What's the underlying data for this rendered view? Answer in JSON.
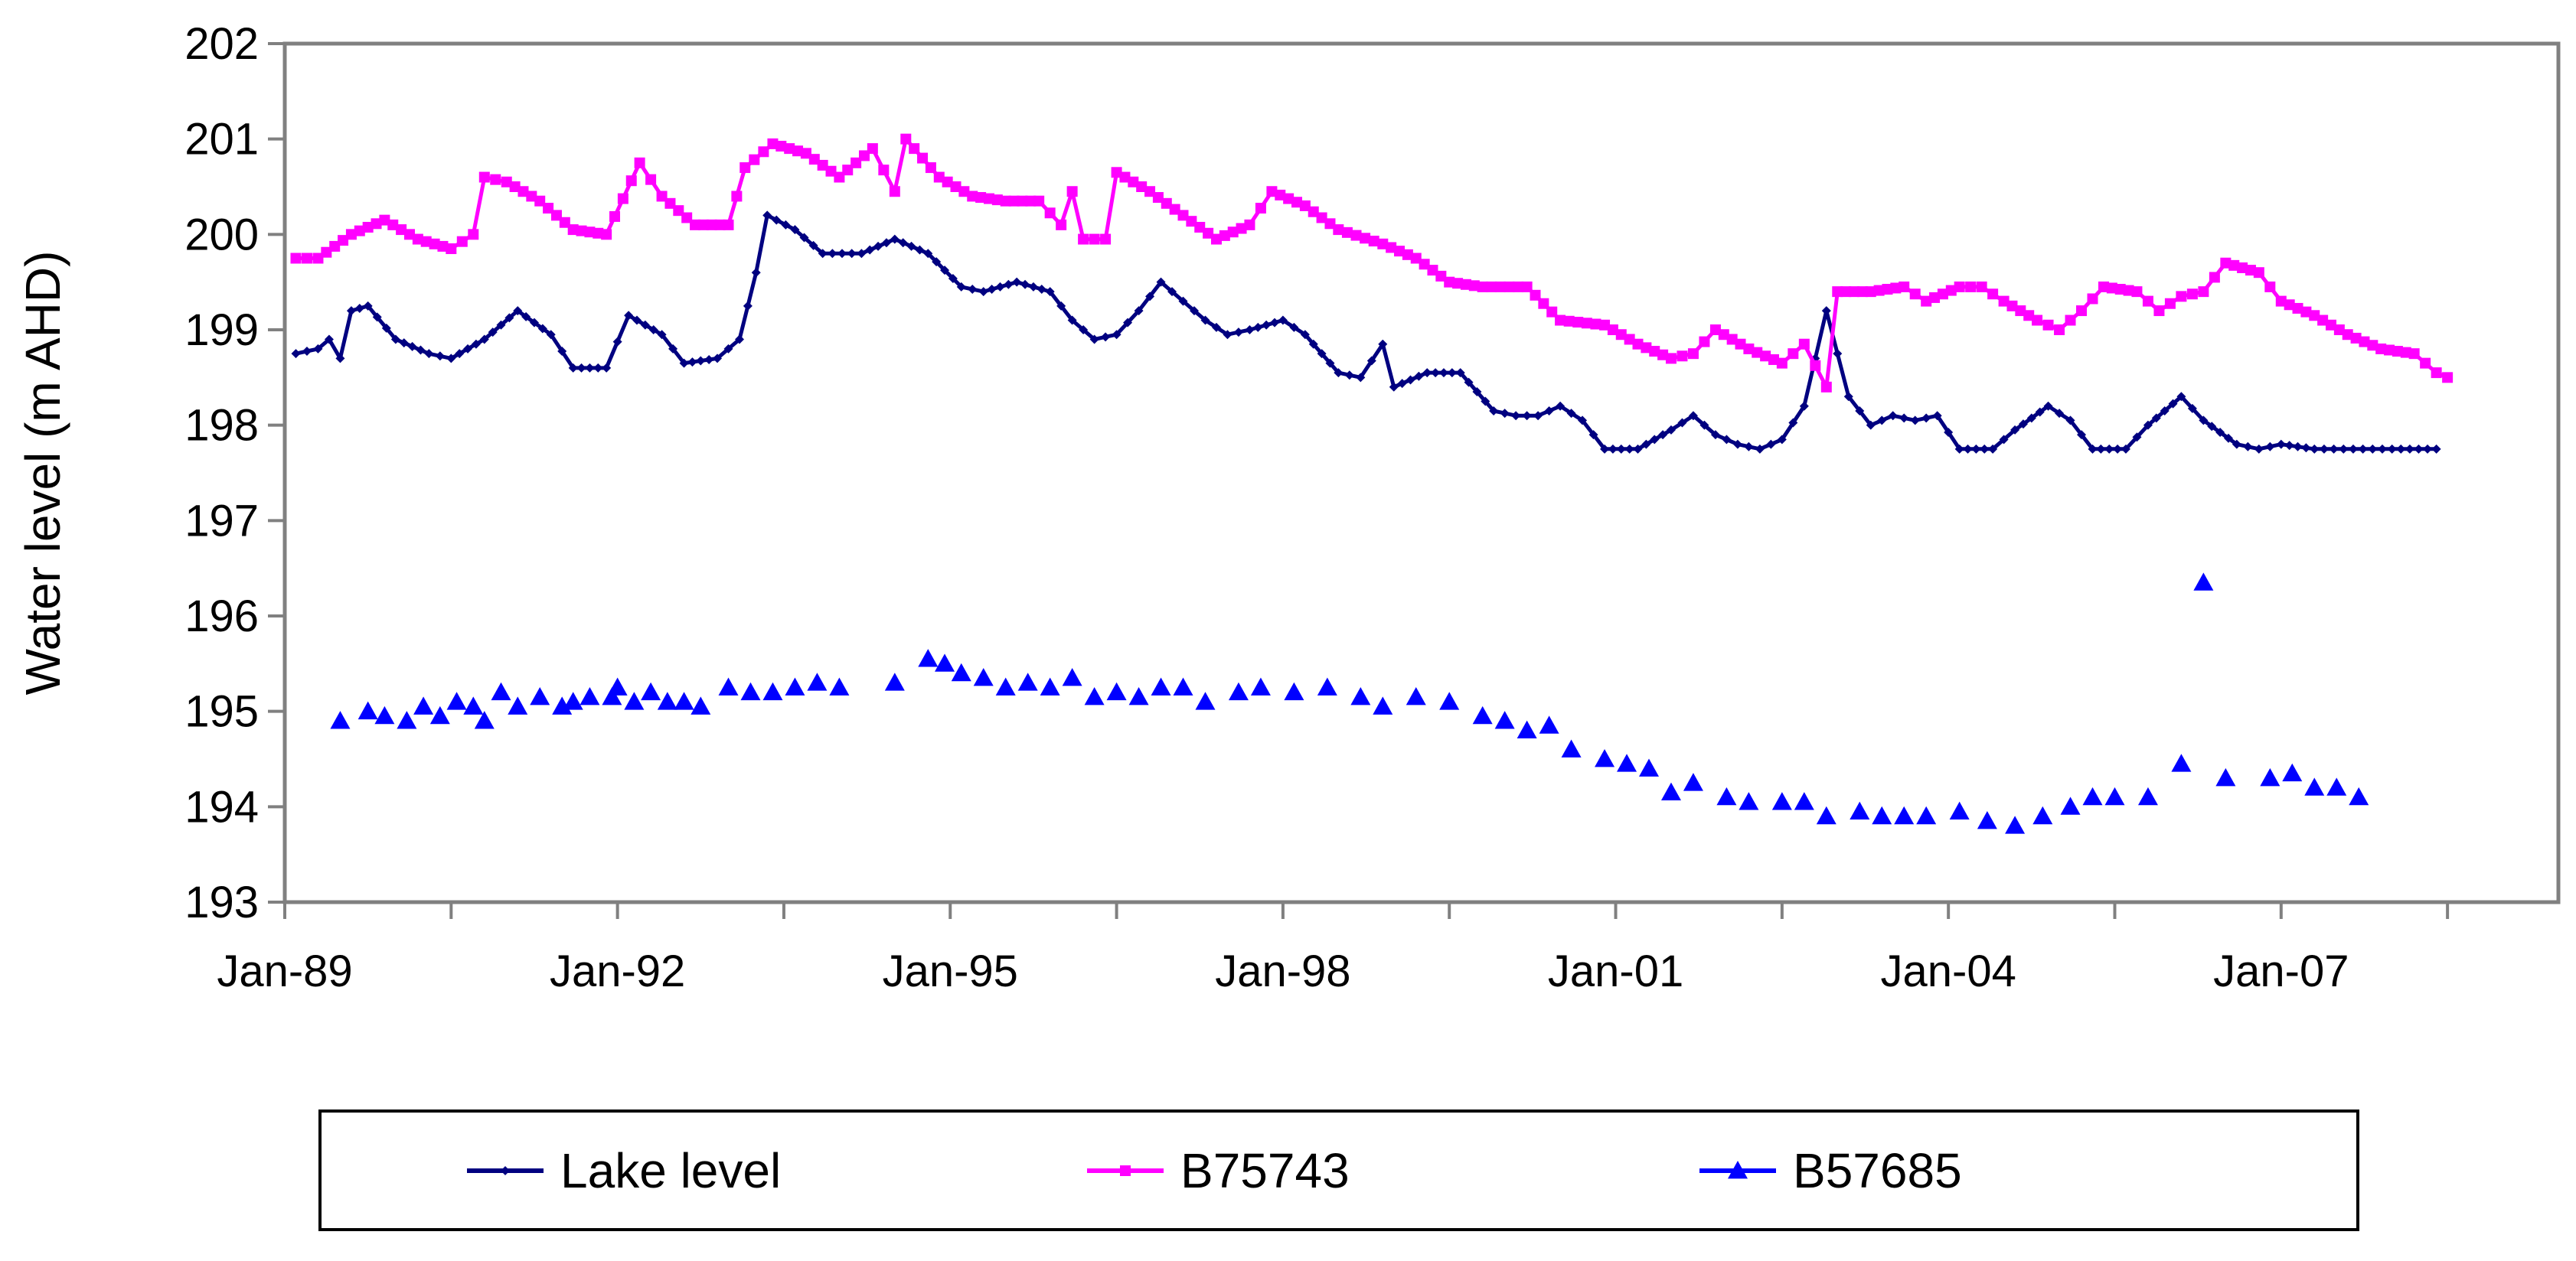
{
  "chart_data": {
    "type": "line",
    "title": "",
    "xlabel": "",
    "ylabel": "Water level (m AHD)",
    "xlim": [
      1989.0,
      2009.5
    ],
    "ylim": [
      193,
      202
    ],
    "y_ticks": [
      193,
      194,
      195,
      196,
      197,
      198,
      199,
      200,
      201,
      202
    ],
    "x_ticks": [
      {
        "label": "Jan-89",
        "x": 1989.0
      },
      {
        "label": "Jan-92",
        "x": 1992.0
      },
      {
        "label": "Jan-95",
        "x": 1995.0
      },
      {
        "label": "Jan-98",
        "x": 1998.0
      },
      {
        "label": "Jan-01",
        "x": 2001.0
      },
      {
        "label": "Jan-04",
        "x": 2004.0
      },
      {
        "label": "Jan-07",
        "x": 2007.0
      }
    ],
    "grid": false,
    "legend_position": "bottom",
    "series": [
      {
        "name": "Lake level",
        "color": "#000080",
        "marker": "diamond",
        "connected": true,
        "anchors": [
          [
            1989.1,
            198.75
          ],
          [
            1989.3,
            198.8
          ],
          [
            1989.4,
            198.9
          ],
          [
            1989.5,
            198.7
          ],
          [
            1989.6,
            199.2
          ],
          [
            1989.75,
            199.25
          ],
          [
            1990.0,
            198.9
          ],
          [
            1990.3,
            198.75
          ],
          [
            1990.5,
            198.7
          ],
          [
            1990.8,
            198.9
          ],
          [
            1991.1,
            199.2
          ],
          [
            1991.4,
            198.95
          ],
          [
            1991.6,
            198.6
          ],
          [
            1991.9,
            198.6
          ],
          [
            1992.1,
            199.15
          ],
          [
            1992.4,
            198.95
          ],
          [
            1992.6,
            198.65
          ],
          [
            1992.9,
            198.7
          ],
          [
            1993.1,
            198.9
          ],
          [
            1993.25,
            199.6
          ],
          [
            1993.35,
            200.2
          ],
          [
            1993.6,
            200.05
          ],
          [
            1993.85,
            199.8
          ],
          [
            1994.2,
            199.8
          ],
          [
            1994.5,
            199.95
          ],
          [
            1994.8,
            199.8
          ],
          [
            1995.1,
            199.45
          ],
          [
            1995.3,
            199.4
          ],
          [
            1995.6,
            199.5
          ],
          [
            1995.9,
            199.4
          ],
          [
            1996.1,
            199.1
          ],
          [
            1996.3,
            198.9
          ],
          [
            1996.5,
            198.95
          ],
          [
            1996.7,
            199.2
          ],
          [
            1996.9,
            199.5
          ],
          [
            1997.1,
            199.3
          ],
          [
            1997.3,
            199.1
          ],
          [
            1997.5,
            198.95
          ],
          [
            1997.7,
            199.0
          ],
          [
            1998.0,
            199.1
          ],
          [
            1998.2,
            198.95
          ],
          [
            1998.5,
            198.55
          ],
          [
            1998.7,
            198.5
          ],
          [
            1998.9,
            198.85
          ],
          [
            1999.0,
            198.4
          ],
          [
            1999.3,
            198.55
          ],
          [
            1999.6,
            198.55
          ],
          [
            1999.9,
            198.15
          ],
          [
            2000.1,
            198.1
          ],
          [
            2000.3,
            198.1
          ],
          [
            2000.5,
            198.2
          ],
          [
            2000.7,
            198.05
          ],
          [
            2000.9,
            197.75
          ],
          [
            2001.2,
            197.75
          ],
          [
            2001.5,
            197.95
          ],
          [
            2001.7,
            198.1
          ],
          [
            2001.9,
            197.9
          ],
          [
            2002.1,
            197.8
          ],
          [
            2002.3,
            197.75
          ],
          [
            2002.5,
            197.85
          ],
          [
            2002.7,
            198.2
          ],
          [
            2002.9,
            199.2
          ],
          [
            2003.1,
            198.3
          ],
          [
            2003.3,
            198.0
          ],
          [
            2003.5,
            198.1
          ],
          [
            2003.7,
            198.05
          ],
          [
            2003.9,
            198.1
          ],
          [
            2004.1,
            197.75
          ],
          [
            2004.4,
            197.75
          ],
          [
            2004.6,
            197.95
          ],
          [
            2004.9,
            198.2
          ],
          [
            2005.1,
            198.05
          ],
          [
            2005.3,
            197.75
          ],
          [
            2005.6,
            197.75
          ],
          [
            2005.8,
            198.0
          ],
          [
            2006.1,
            198.3
          ],
          [
            2006.3,
            198.05
          ],
          [
            2006.6,
            197.8
          ],
          [
            2006.8,
            197.75
          ],
          [
            2007.0,
            197.8
          ],
          [
            2007.3,
            197.75
          ],
          [
            2008.0,
            197.75
          ],
          [
            2008.4,
            197.75
          ]
        ]
      },
      {
        "name": "B75743",
        "color": "#ff00ff",
        "marker": "square",
        "connected": true,
        "anchors": [
          [
            1989.1,
            199.75
          ],
          [
            1989.3,
            199.75
          ],
          [
            1989.6,
            200.0
          ],
          [
            1989.9,
            200.15
          ],
          [
            1990.2,
            199.95
          ],
          [
            1990.5,
            199.85
          ],
          [
            1990.7,
            200.0
          ],
          [
            1990.8,
            200.6
          ],
          [
            1991.0,
            200.55
          ],
          [
            1991.3,
            200.35
          ],
          [
            1991.6,
            200.05
          ],
          [
            1991.9,
            200.0
          ],
          [
            1992.2,
            200.75
          ],
          [
            1992.4,
            200.4
          ],
          [
            1992.7,
            200.1
          ],
          [
            1993.0,
            200.1
          ],
          [
            1993.15,
            200.7
          ],
          [
            1993.4,
            200.95
          ],
          [
            1993.7,
            200.85
          ],
          [
            1994.0,
            200.6
          ],
          [
            1994.3,
            200.9
          ],
          [
            1994.5,
            200.45
          ],
          [
            1994.6,
            201.0
          ],
          [
            1994.9,
            200.6
          ],
          [
            1995.2,
            200.4
          ],
          [
            1995.5,
            200.35
          ],
          [
            1995.8,
            200.35
          ],
          [
            1996.0,
            200.1
          ],
          [
            1996.1,
            200.45
          ],
          [
            1996.2,
            199.95
          ],
          [
            1996.4,
            199.95
          ],
          [
            1996.5,
            200.65
          ],
          [
            1996.8,
            200.45
          ],
          [
            1997.1,
            200.2
          ],
          [
            1997.4,
            199.95
          ],
          [
            1997.7,
            200.1
          ],
          [
            1997.9,
            200.45
          ],
          [
            1998.2,
            200.3
          ],
          [
            1998.5,
            200.05
          ],
          [
            1998.9,
            199.9
          ],
          [
            1999.2,
            199.75
          ],
          [
            1999.5,
            199.5
          ],
          [
            1999.8,
            199.45
          ],
          [
            2000.2,
            199.45
          ],
          [
            2000.5,
            199.1
          ],
          [
            2000.9,
            199.05
          ],
          [
            2001.2,
            198.85
          ],
          [
            2001.5,
            198.7
          ],
          [
            2001.7,
            198.75
          ],
          [
            2001.9,
            199.0
          ],
          [
            2002.2,
            198.8
          ],
          [
            2002.5,
            198.65
          ],
          [
            2002.7,
            198.85
          ],
          [
            2002.9,
            198.4
          ],
          [
            2003.0,
            199.4
          ],
          [
            2003.3,
            199.4
          ],
          [
            2003.6,
            199.45
          ],
          [
            2003.8,
            199.3
          ],
          [
            2004.1,
            199.45
          ],
          [
            2004.3,
            199.45
          ],
          [
            2004.5,
            199.3
          ],
          [
            2004.8,
            199.1
          ],
          [
            2005.0,
            199.0
          ],
          [
            2005.2,
            199.2
          ],
          [
            2005.4,
            199.45
          ],
          [
            2005.7,
            199.4
          ],
          [
            2005.9,
            199.2
          ],
          [
            2006.1,
            199.35
          ],
          [
            2006.3,
            199.4
          ],
          [
            2006.5,
            199.7
          ],
          [
            2006.8,
            199.6
          ],
          [
            2007.0,
            199.3
          ],
          [
            2007.3,
            199.15
          ],
          [
            2007.6,
            198.95
          ],
          [
            2007.9,
            198.8
          ],
          [
            2008.2,
            198.75
          ],
          [
            2008.4,
            198.55
          ],
          [
            2008.5,
            198.5
          ]
        ]
      },
      {
        "name": "B57685",
        "color": "#0000ff",
        "marker": "triangle",
        "connected": false,
        "points": [
          [
            1989.5,
            194.9
          ],
          [
            1989.75,
            195.0
          ],
          [
            1989.9,
            194.95
          ],
          [
            1990.1,
            194.9
          ],
          [
            1990.25,
            195.05
          ],
          [
            1990.4,
            194.95
          ],
          [
            1990.55,
            195.1
          ],
          [
            1990.7,
            195.05
          ],
          [
            1990.8,
            194.9
          ],
          [
            1990.95,
            195.2
          ],
          [
            1991.1,
            195.05
          ],
          [
            1991.3,
            195.15
          ],
          [
            1991.5,
            195.05
          ],
          [
            1991.6,
            195.1
          ],
          [
            1991.75,
            195.15
          ],
          [
            1991.95,
            195.15
          ],
          [
            1992.0,
            195.25
          ],
          [
            1992.15,
            195.1
          ],
          [
            1992.3,
            195.2
          ],
          [
            1992.45,
            195.1
          ],
          [
            1992.6,
            195.1
          ],
          [
            1992.75,
            195.05
          ],
          [
            1993.0,
            195.25
          ],
          [
            1993.2,
            195.2
          ],
          [
            1993.4,
            195.2
          ],
          [
            1993.6,
            195.25
          ],
          [
            1993.8,
            195.3
          ],
          [
            1994.0,
            195.25
          ],
          [
            1994.5,
            195.3
          ],
          [
            1994.8,
            195.55
          ],
          [
            1994.95,
            195.5
          ],
          [
            1995.1,
            195.4
          ],
          [
            1995.3,
            195.35
          ],
          [
            1995.5,
            195.25
          ],
          [
            1995.7,
            195.3
          ],
          [
            1995.9,
            195.25
          ],
          [
            1996.1,
            195.35
          ],
          [
            1996.3,
            195.15
          ],
          [
            1996.5,
            195.2
          ],
          [
            1996.7,
            195.15
          ],
          [
            1996.9,
            195.25
          ],
          [
            1997.1,
            195.25
          ],
          [
            1997.3,
            195.1
          ],
          [
            1997.6,
            195.2
          ],
          [
            1997.8,
            195.25
          ],
          [
            1998.1,
            195.2
          ],
          [
            1998.4,
            195.25
          ],
          [
            1998.7,
            195.15
          ],
          [
            1998.9,
            195.05
          ],
          [
            1999.2,
            195.15
          ],
          [
            1999.5,
            195.1
          ],
          [
            1999.8,
            194.95
          ],
          [
            2000.0,
            194.9
          ],
          [
            2000.2,
            194.8
          ],
          [
            2000.4,
            194.85
          ],
          [
            2000.6,
            194.6
          ],
          [
            2000.9,
            194.5
          ],
          [
            2001.1,
            194.45
          ],
          [
            2001.3,
            194.4
          ],
          [
            2001.5,
            194.15
          ],
          [
            2001.7,
            194.25
          ],
          [
            2002.0,
            194.1
          ],
          [
            2002.2,
            194.05
          ],
          [
            2002.5,
            194.05
          ],
          [
            2002.7,
            194.05
          ],
          [
            2002.9,
            193.9
          ],
          [
            2003.2,
            193.95
          ],
          [
            2003.4,
            193.9
          ],
          [
            2003.6,
            193.9
          ],
          [
            2003.8,
            193.9
          ],
          [
            2004.1,
            193.95
          ],
          [
            2004.35,
            193.85
          ],
          [
            2004.6,
            193.8
          ],
          [
            2004.85,
            193.9
          ],
          [
            2005.1,
            194.0
          ],
          [
            2005.3,
            194.1
          ],
          [
            2005.5,
            194.1
          ],
          [
            2005.8,
            194.1
          ],
          [
            2006.1,
            194.45
          ],
          [
            2006.3,
            196.35
          ],
          [
            2006.5,
            194.3
          ],
          [
            2006.9,
            194.3
          ],
          [
            2007.1,
            194.35
          ],
          [
            2007.3,
            194.2
          ],
          [
            2007.5,
            194.2
          ],
          [
            2007.7,
            194.1
          ]
        ]
      }
    ]
  }
}
